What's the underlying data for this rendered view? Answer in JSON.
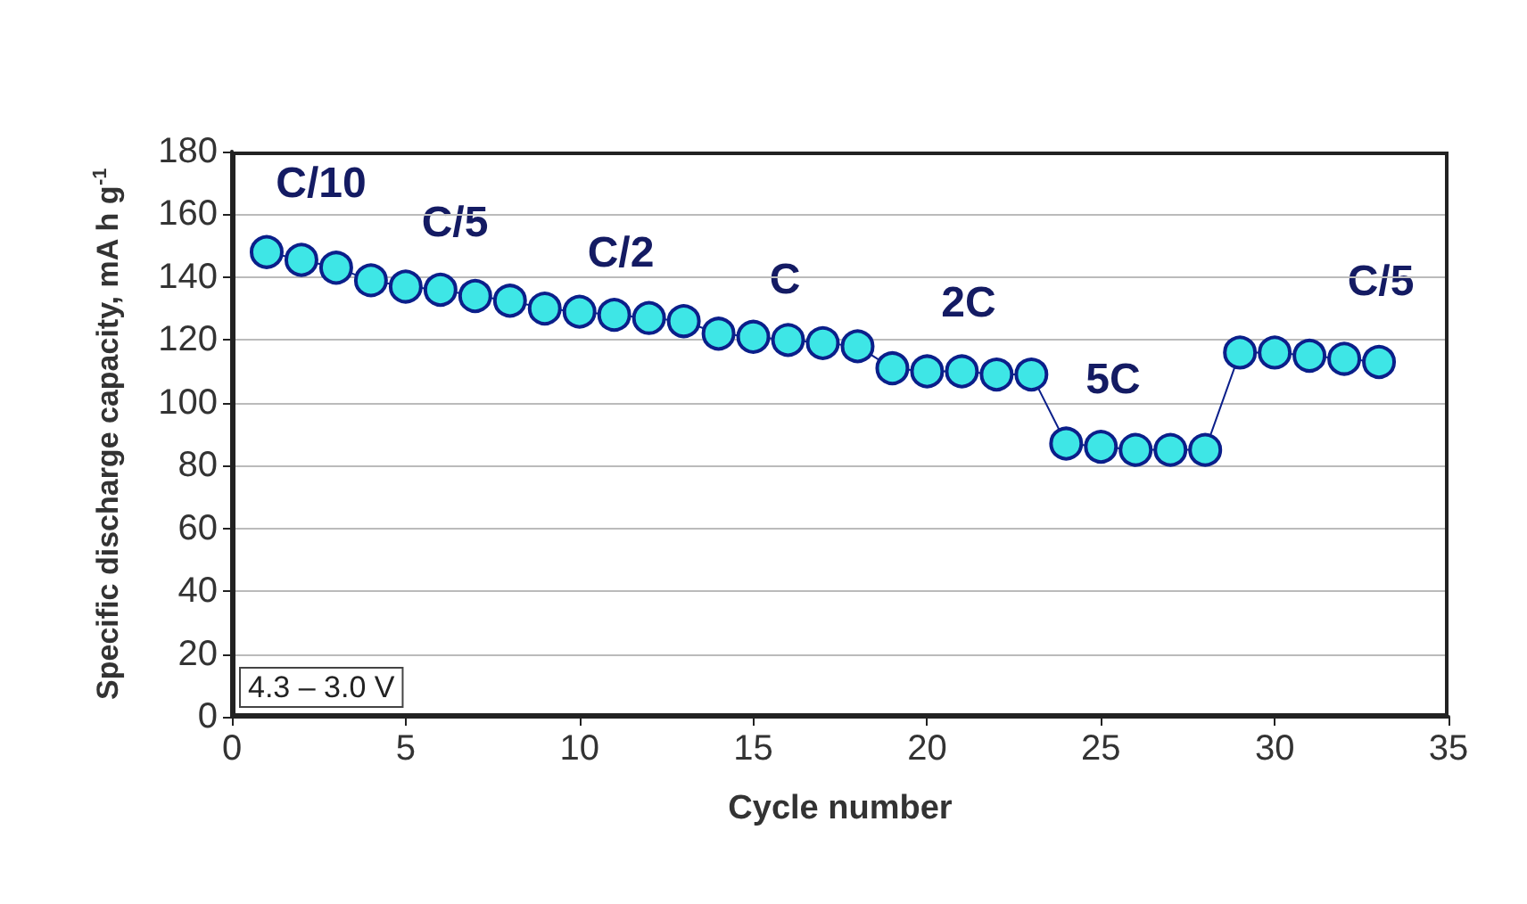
{
  "chart_data": {
    "type": "line",
    "xlabel": "Cycle number",
    "ylabel": "Specific discharge capacity, mA h g$^{-1}$",
    "x": [
      1,
      2,
      3,
      4,
      5,
      6,
      7,
      8,
      9,
      10,
      11,
      12,
      13,
      14,
      15,
      16,
      17,
      18,
      19,
      20,
      21,
      22,
      23,
      24,
      25,
      26,
      27,
      28,
      29,
      30,
      31,
      32,
      33
    ],
    "series": [
      {
        "color": "#3ee6e6",
        "values": [
          148,
          145.5,
          143,
          139,
          137,
          136,
          134,
          132.5,
          130,
          129,
          128,
          127,
          126,
          122,
          121,
          120,
          119,
          118,
          111,
          110,
          110,
          109,
          109,
          87,
          86,
          85,
          85,
          85,
          116,
          116,
          115,
          114,
          113
        ]
      }
    ],
    "xlim": [
      0,
      35
    ],
    "xticks": [
      0,
      5,
      10,
      15,
      20,
      25,
      30,
      35
    ],
    "ylim": [
      0,
      180
    ],
    "yticks": [
      0,
      20,
      40,
      60,
      80,
      100,
      120,
      140,
      160,
      180
    ],
    "grid": "y",
    "marker": "circle",
    "line_style": "solid",
    "annotations": [
      "C/10",
      "C/5",
      "C/2",
      "C",
      "2C",
      "5C",
      "C/5",
      "4.3 – 3.0 V"
    ]
  }
}
